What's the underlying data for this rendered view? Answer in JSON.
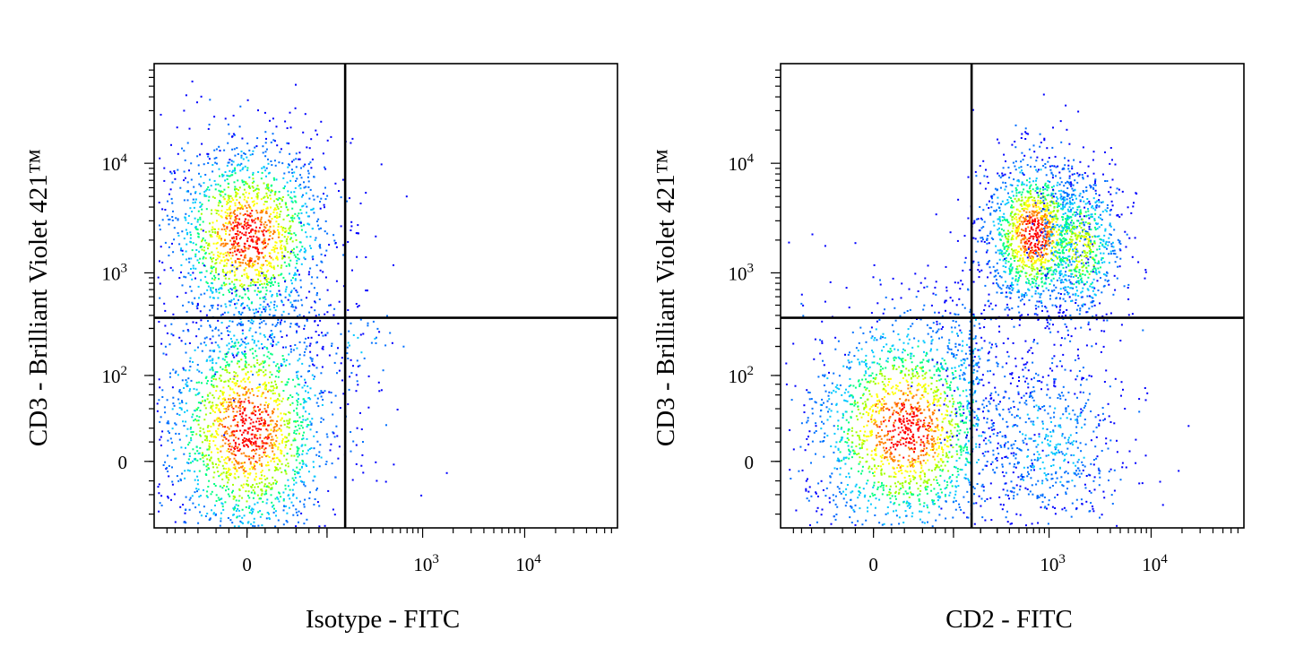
{
  "chart_data": [
    {
      "type": "scatter",
      "style": "density-dot-plot",
      "xlabel": "Isotype - FITC",
      "ylabel": "CD3 - Brilliant Violet 421™",
      "x_scale": "biexponential",
      "y_scale": "biexponential",
      "x_ticks": [
        {
          "value": 0,
          "label": "0"
        },
        {
          "value": 1000,
          "label": "10",
          "exp": "3"
        },
        {
          "value": 10000,
          "label": "10",
          "exp": "4"
        }
      ],
      "y_ticks": [
        {
          "value": 0,
          "label": "0"
        },
        {
          "value": 100,
          "label": "10",
          "exp": "2"
        },
        {
          "value": 1000,
          "label": "10",
          "exp": "3"
        },
        {
          "value": 10000,
          "label": "10",
          "exp": "4"
        }
      ],
      "gate": {
        "x": 160,
        "y": 380
      },
      "populations": [
        {
          "cx": 0,
          "cy": 2200,
          "sx": 0.32,
          "sy": 0.38,
          "n": 1700,
          "density": "high"
        },
        {
          "cx": 0,
          "cy": 20,
          "sx": 0.34,
          "sy": 0.48,
          "n": 2000,
          "density": "high"
        },
        {
          "cx": 220,
          "cy": 240,
          "sx": 0.15,
          "sy": 0.15,
          "n": 45,
          "density": "low"
        }
      ],
      "outliers": [
        {
          "x": 0,
          "y": 38000
        },
        {
          "x": 60,
          "y": 14000
        },
        {
          "x": -10,
          "y": 11000
        },
        {
          "x": 260,
          "y": 5500
        },
        {
          "x": 230,
          "y": 4400
        },
        {
          "x": 330,
          "y": 2200
        },
        {
          "x": 500,
          "y": 1200
        },
        {
          "x": 180,
          "y": 2500
        },
        {
          "x": 260,
          "y": 700
        },
        {
          "x": 380,
          "y": 70
        },
        {
          "x": 280,
          "y": 100
        },
        {
          "x": 550,
          "y": 40
        },
        {
          "x": 330,
          "y": 0
        },
        {
          "x": 420,
          "y": -10
        },
        {
          "x": 950,
          "y": -20
        },
        {
          "x": 1700,
          "y": -5
        }
      ],
      "colors": [
        "#0000ff",
        "#0070ff",
        "#00c8ff",
        "#00ff80",
        "#a0ff00",
        "#ffff00",
        "#ff8000",
        "#ff0000"
      ]
    },
    {
      "type": "scatter",
      "style": "density-dot-plot",
      "xlabel": "CD2 - FITC",
      "ylabel": "CD3 - Brilliant Violet 421™",
      "x_scale": "biexponential",
      "y_scale": "biexponential",
      "x_ticks": [
        {
          "value": 0,
          "label": "0"
        },
        {
          "value": 1000,
          "label": "10",
          "exp": "3"
        },
        {
          "value": 10000,
          "label": "10",
          "exp": "4"
        }
      ],
      "y_ticks": [
        {
          "value": 0,
          "label": "0"
        },
        {
          "value": 100,
          "label": "10",
          "exp": "2"
        },
        {
          "value": 1000,
          "label": "10",
          "exp": "3"
        },
        {
          "value": 10000,
          "label": "10",
          "exp": "4"
        }
      ],
      "gate": {
        "x": 160,
        "y": 380
      },
      "populations": [
        {
          "cx": 700,
          "cy": 2300,
          "sx": 0.2,
          "sy": 0.3,
          "n": 1400,
          "density": "high"
        },
        {
          "cx": 2000,
          "cy": 1800,
          "sx": 0.17,
          "sy": 0.3,
          "n": 700,
          "density": "medium"
        },
        {
          "cx": 20,
          "cy": 20,
          "sx": 0.38,
          "sy": 0.45,
          "n": 2000,
          "density": "high"
        },
        {
          "cx": 1000,
          "cy": 10,
          "sx": 0.3,
          "sy": 0.38,
          "n": 600,
          "density": "low"
        },
        {
          "cx": 140,
          "cy": 180,
          "sx": 0.15,
          "sy": 0.3,
          "n": 140,
          "density": "low"
        }
      ],
      "outliers": [
        {
          "x": 1900,
          "y": 30000
        },
        {
          "x": 700,
          "y": 13000
        },
        {
          "x": 550,
          "y": 8000
        },
        {
          "x": -60,
          "y": 2300
        },
        {
          "x": -40,
          "y": 1800
        },
        {
          "x": 60,
          "y": 3500
        },
        {
          "x": 90,
          "y": 2400
        },
        {
          "x": 110,
          "y": 2000
        },
        {
          "x": 30,
          "y": 1000
        },
        {
          "x": 90,
          "y": 600
        },
        {
          "x": -40,
          "y": 550
        },
        {
          "x": 0,
          "y": 1200
        },
        {
          "x": 12000,
          "y": -10
        },
        {
          "x": 5000,
          "y": 60
        },
        {
          "x": 7500,
          "y": 55
        }
      ],
      "colors": [
        "#0000ff",
        "#0070ff",
        "#00c8ff",
        "#00ff80",
        "#a0ff00",
        "#ffff00",
        "#ff8000",
        "#ff0000"
      ]
    }
  ]
}
